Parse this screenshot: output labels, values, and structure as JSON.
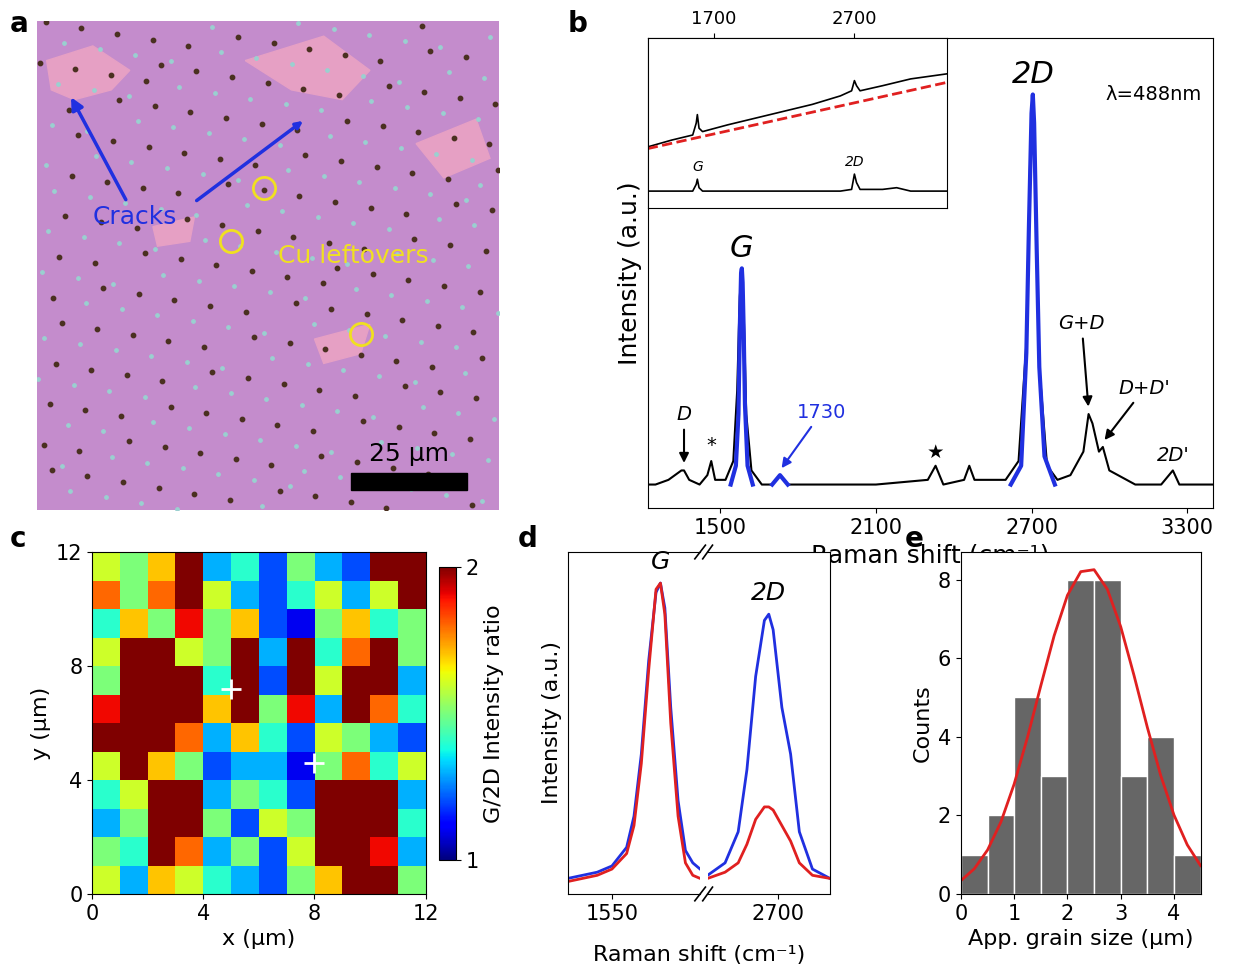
{
  "chart_data": [
    {
      "panel": "a",
      "type": "image",
      "annotations": [
        {
          "text": "Cracks",
          "color": "#2030e0"
        },
        {
          "text": "Cu leftovers",
          "color": "#f0e020"
        }
      ],
      "scale_bar": "25 µm"
    },
    {
      "panel": "b",
      "type": "line",
      "tick_labels": "x",
      "x_label": "Raman shift (cm⁻¹)",
      "y_label": "Intensity (a.u.)",
      "xlim": [
        1220,
        3400
      ],
      "xticks": [
        1500,
        2100,
        2700,
        3300
      ],
      "ylim": [
        0,
        1
      ],
      "note": "λ=488nm",
      "spectrum": {
        "color": "#000000",
        "x": [
          1220,
          1250,
          1300,
          1350,
          1360,
          1380,
          1420,
          1450,
          1465,
          1480,
          1520,
          1550,
          1565,
          1575,
          1583,
          1590,
          1600,
          1620,
          1660,
          1700,
          1730,
          1760,
          1850,
          2000,
          2100,
          2300,
          2330,
          2360,
          2440,
          2460,
          2480,
          2600,
          2650,
          2680,
          2695,
          2705,
          2715,
          2730,
          2760,
          2800,
          2850,
          2900,
          2920,
          2935,
          2960,
          2975,
          3000,
          3100,
          3200,
          3245,
          3270,
          3350,
          3400
        ],
        "values": [
          0.05,
          0.05,
          0.06,
          0.08,
          0.08,
          0.06,
          0.05,
          0.07,
          0.1,
          0.06,
          0.06,
          0.1,
          0.25,
          0.45,
          0.51,
          0.42,
          0.2,
          0.08,
          0.05,
          0.05,
          0.07,
          0.05,
          0.05,
          0.05,
          0.05,
          0.06,
          0.09,
          0.05,
          0.06,
          0.09,
          0.06,
          0.06,
          0.1,
          0.35,
          0.75,
          0.88,
          0.7,
          0.3,
          0.09,
          0.06,
          0.07,
          0.12,
          0.2,
          0.18,
          0.12,
          0.13,
          0.08,
          0.05,
          0.05,
          0.08,
          0.05,
          0.05,
          0.05
        ]
      },
      "fits": [
        {
          "color": "#2030e0",
          "x": [
            1540,
            1560,
            1570,
            1575,
            1580,
            1583,
            1586,
            1590,
            1595,
            1605,
            1625
          ],
          "values": [
            0.05,
            0.09,
            0.2,
            0.38,
            0.5,
            0.51,
            0.48,
            0.38,
            0.22,
            0.09,
            0.05
          ]
        },
        {
          "color": "#2030e0",
          "x": [
            1700,
            1715,
            1730,
            1745,
            1760
          ],
          "values": [
            0.05,
            0.06,
            0.07,
            0.06,
            0.05
          ]
        },
        {
          "color": "#2030e0",
          "x": [
            2620,
            2660,
            2680,
            2690,
            2700,
            2705,
            2710,
            2720,
            2730,
            2750,
            2790
          ],
          "values": [
            0.05,
            0.09,
            0.33,
            0.6,
            0.84,
            0.88,
            0.82,
            0.55,
            0.3,
            0.11,
            0.05
          ]
        }
      ],
      "annotations": [
        {
          "text": "D",
          "x": 1360,
          "color": "#000000"
        },
        {
          "text": "*",
          "x": 1465,
          "color": "#000000"
        },
        {
          "text": "G",
          "x": 1583,
          "color": "#000000"
        },
        {
          "text": "1730",
          "x": 1730,
          "color": "#2030e0"
        },
        {
          "text": "★",
          "x": 2330,
          "color": "#000000"
        },
        {
          "text": "2D",
          "x": 2705,
          "color": "#000000"
        },
        {
          "text": "G+D",
          "x": 2920,
          "color": "#000000"
        },
        {
          "text": "D+D'",
          "x": 2975,
          "color": "#000000"
        },
        {
          "text": "2D'",
          "x": 3245,
          "color": "#000000"
        }
      ],
      "inset": {
        "xlim": [
          1230,
          3360
        ],
        "xticks": [
          1700,
          2700
        ],
        "ylim": [
          0,
          1
        ],
        "tick_labels": "x",
        "raw": {
          "color": "#000000",
          "x": [
            1230,
            1400,
            1550,
            1575,
            1583,
            1595,
            1620,
            1800,
            2100,
            2400,
            2600,
            2680,
            2700,
            2715,
            2740,
            2900,
            3100,
            3360
          ],
          "values": [
            0.36,
            0.4,
            0.43,
            0.5,
            0.55,
            0.47,
            0.45,
            0.49,
            0.55,
            0.61,
            0.66,
            0.69,
            0.75,
            0.72,
            0.69,
            0.72,
            0.76,
            0.79
          ]
        },
        "baseline": {
          "color": "#e02020",
          "line_style": "dashed",
          "x": [
            1230,
            3360
          ],
          "values": [
            0.35,
            0.74
          ]
        },
        "corrected": {
          "color": "#000000",
          "x": [
            1230,
            1550,
            1575,
            1583,
            1595,
            1620,
            2600,
            2680,
            2700,
            2715,
            2740,
            2900,
            3000,
            3100,
            3360
          ],
          "values": [
            0.1,
            0.1,
            0.14,
            0.17,
            0.12,
            0.1,
            0.1,
            0.11,
            0.2,
            0.15,
            0.11,
            0.11,
            0.12,
            0.1,
            0.1
          ]
        },
        "annotations": [
          {
            "text": "G",
            "x": 1583
          },
          {
            "text": "2D",
            "x": 2700
          }
        ]
      }
    },
    {
      "panel": "c",
      "type": "heatmap",
      "x_label": "x (µm)",
      "y_label": "y (µm)",
      "xlim": [
        0,
        12
      ],
      "xticks": [
        0,
        4,
        8,
        12
      ],
      "ylim": [
        0,
        12
      ],
      "yticks": [
        0,
        4,
        8,
        12
      ],
      "cells_from_bottom": [
        [
          1.6,
          1.3,
          1.7,
          1.6,
          1.4,
          1.3,
          1.2,
          1.5,
          1.7,
          2.0,
          2.0,
          1.5
        ],
        [
          1.5,
          1.4,
          2.0,
          1.8,
          1.3,
          1.5,
          1.2,
          1.6,
          2.0,
          2.0,
          1.9,
          1.3
        ],
        [
          1.3,
          1.5,
          2.0,
          2.0,
          1.5,
          1.2,
          1.6,
          1.5,
          2.0,
          2.0,
          2.0,
          1.4
        ],
        [
          1.4,
          1.6,
          2.0,
          2.0,
          1.3,
          1.5,
          1.4,
          1.2,
          2.0,
          2.0,
          2.0,
          1.3
        ],
        [
          1.6,
          2.0,
          1.7,
          1.5,
          1.2,
          1.3,
          1.3,
          1.1,
          1.5,
          1.8,
          1.4,
          1.6
        ],
        [
          2.0,
          2.0,
          2.0,
          1.8,
          1.3,
          1.7,
          1.4,
          1.2,
          1.6,
          1.5,
          1.3,
          1.2
        ],
        [
          1.9,
          2.0,
          2.0,
          2.0,
          1.7,
          2.0,
          1.5,
          1.9,
          1.3,
          2.0,
          1.8,
          1.4
        ],
        [
          1.5,
          2.0,
          2.0,
          2.0,
          1.4,
          2.0,
          1.2,
          2.0,
          1.6,
          2.0,
          2.0,
          1.3
        ],
        [
          1.6,
          2.0,
          2.0,
          1.6,
          1.5,
          2.0,
          1.3,
          2.0,
          1.4,
          1.8,
          2.0,
          1.5
        ],
        [
          1.4,
          1.7,
          1.5,
          1.9,
          1.5,
          1.7,
          1.2,
          1.1,
          1.5,
          1.7,
          1.4,
          1.5
        ],
        [
          1.8,
          1.5,
          1.8,
          2.0,
          1.6,
          1.3,
          1.2,
          1.4,
          1.6,
          1.3,
          1.6,
          2.0
        ],
        [
          1.6,
          1.5,
          1.7,
          2.0,
          1.3,
          1.4,
          1.2,
          1.5,
          1.3,
          1.2,
          2.0,
          2.0
        ]
      ],
      "colorbar": {
        "label": "G/2D Intensity ratio",
        "range": [
          1,
          2
        ],
        "ticks": [
          1,
          2
        ]
      },
      "points": {
        "marker": "+",
        "color": "#ffffff",
        "x": [
          5,
          8
        ],
        "y": [
          7.2,
          4.6
        ]
      }
    },
    {
      "panel": "d",
      "type": "line",
      "tick_labels": "x",
      "x_label": "Raman shift (cm⁻¹)",
      "y_label": "Intensity (a.u.)",
      "ylim": [
        0,
        1.1
      ],
      "segments": [
        {
          "label": "G",
          "xlim": [
            1520,
            1610
          ],
          "xticks": [
            1550
          ],
          "x": [
            1520,
            1530,
            1540,
            1550,
            1560,
            1565,
            1570,
            1575,
            1580,
            1583,
            1586,
            1590,
            1595,
            1600,
            1605,
            1610
          ],
          "series": [
            {
              "color": "#2030e0",
              "values": [
                0.05,
                0.06,
                0.07,
                0.09,
                0.15,
                0.25,
                0.45,
                0.75,
                0.97,
                1.0,
                0.92,
                0.6,
                0.3,
                0.14,
                0.1,
                0.08
              ]
            },
            {
              "color": "#e02020",
              "values": [
                0.04,
                0.05,
                0.06,
                0.08,
                0.13,
                0.22,
                0.42,
                0.72,
                0.98,
                1.0,
                0.9,
                0.55,
                0.25,
                0.1,
                0.06,
                0.05
              ]
            }
          ]
        },
        {
          "label": "2D",
          "xlim": [
            2620,
            2760
          ],
          "xticks": [
            2700
          ],
          "x": [
            2620,
            2640,
            2655,
            2665,
            2675,
            2685,
            2690,
            2695,
            2705,
            2715,
            2725,
            2740,
            2760
          ],
          "series": [
            {
              "color": "#2030e0",
              "values": [
                0.06,
                0.1,
                0.2,
                0.4,
                0.7,
                0.88,
                0.9,
                0.85,
                0.6,
                0.45,
                0.2,
                0.08,
                0.05
              ]
            },
            {
              "color": "#e02020",
              "values": [
                0.05,
                0.07,
                0.1,
                0.16,
                0.24,
                0.28,
                0.28,
                0.27,
                0.22,
                0.17,
                0.1,
                0.06,
                0.05
              ]
            }
          ]
        }
      ]
    },
    {
      "panel": "e",
      "type": "histogram",
      "x_label": "App. grain size (µm)",
      "y_label": "Counts",
      "xlim": [
        0,
        4.5
      ],
      "xticks": [
        0,
        1,
        2,
        3,
        4
      ],
      "ylim": [
        0,
        8.7
      ],
      "yticks": [
        0,
        2,
        4,
        6,
        8
      ],
      "bins": [
        0,
        0.5,
        1.0,
        1.5,
        2.0,
        2.5,
        3.0,
        3.5,
        4.0,
        4.5
      ],
      "counts": [
        1,
        2,
        5,
        3,
        8,
        8,
        3,
        4,
        1
      ],
      "color": "#666666",
      "fit": {
        "color": "#e02020",
        "x": [
          0,
          0.25,
          0.5,
          0.75,
          1,
          1.25,
          1.5,
          1.75,
          2,
          2.25,
          2.5,
          2.75,
          3,
          3.25,
          3.5,
          3.75,
          4,
          4.25,
          4.5
        ],
        "values": [
          0.34,
          0.64,
          1.12,
          1.83,
          2.8,
          3.99,
          5.3,
          6.57,
          7.6,
          8.2,
          8.25,
          7.75,
          6.8,
          5.56,
          4.24,
          3.02,
          2.01,
          1.25,
          0.72
        ]
      }
    }
  ]
}
